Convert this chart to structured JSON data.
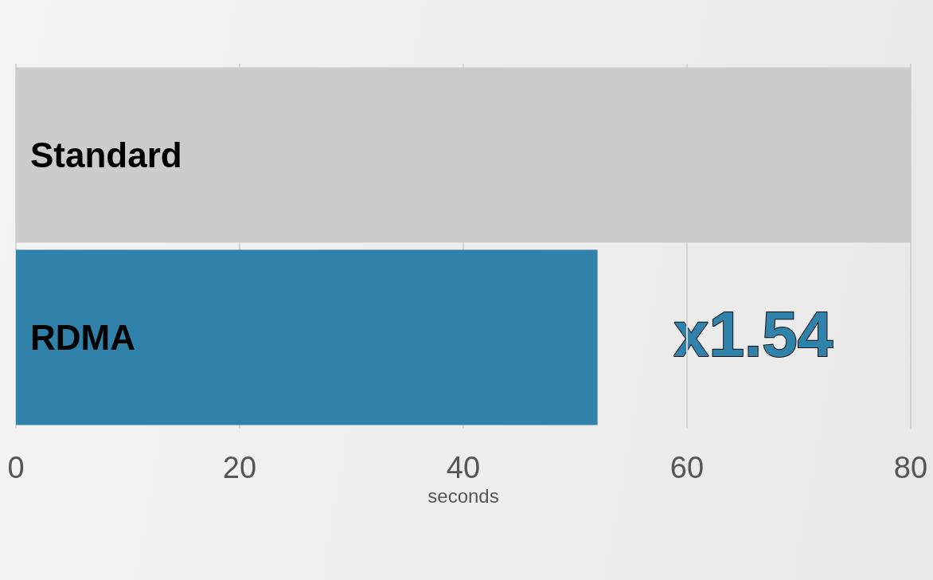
{
  "chart_data": {
    "type": "bar",
    "orientation": "horizontal",
    "xlabel": "seconds",
    "categories": [
      "Standard",
      "RDMA"
    ],
    "values": [
      80,
      52
    ],
    "colors": [
      "#cccccc",
      "#3182ab"
    ],
    "xlim": [
      0,
      80
    ],
    "xticks": [
      0,
      20,
      40,
      60,
      80
    ],
    "grid": "x",
    "annotations": [
      "x1.54"
    ]
  }
}
